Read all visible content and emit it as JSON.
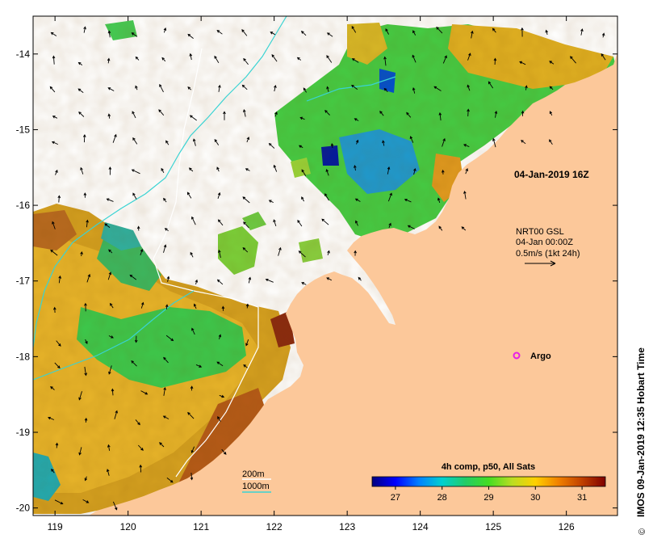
{
  "map": {
    "lon_range": [
      118.7,
      126.7
    ],
    "lat_range": [
      -20.1,
      -13.5
    ],
    "x_ticks": [
      "119",
      "120",
      "121",
      "122",
      "123",
      "124",
      "125",
      "126"
    ],
    "y_ticks": [
      "-14",
      "-15",
      "-16",
      "-17",
      "-18",
      "-19",
      "-20"
    ],
    "colors": {
      "land": "#fcc89a",
      "no_data": "#ffffff",
      "isobath_200m": "#ffffff",
      "isobath_1000m": "#39d3d3",
      "argo": "#e81ee8"
    }
  },
  "annotations": {
    "time_label": "04-Jan-2019 16Z",
    "current_product": "NRT00 GSL",
    "current_time": "04-Jan 00:00Z",
    "current_scale": "0.5m/s (1kt 24h)",
    "argo_label": "Argo",
    "isobath_200": "200m",
    "isobath_1000": "1000m",
    "credit": "IMOS 09-Jan-2019 12:35 Hobart Time",
    "copyright": "©"
  },
  "colorbar": {
    "title": "4h comp, p50, All Sats",
    "ticks": [
      "27",
      "28",
      "29",
      "30",
      "31"
    ],
    "tick_values": [
      27,
      28,
      29,
      30,
      31
    ],
    "range": [
      26.5,
      31.5
    ],
    "stops": [
      "#00007f",
      "#0000ff",
      "#0080ff",
      "#00d0d0",
      "#22cc66",
      "#44dd22",
      "#bbdd22",
      "#ffd000",
      "#f08000",
      "#c04000",
      "#7f0000"
    ]
  }
}
